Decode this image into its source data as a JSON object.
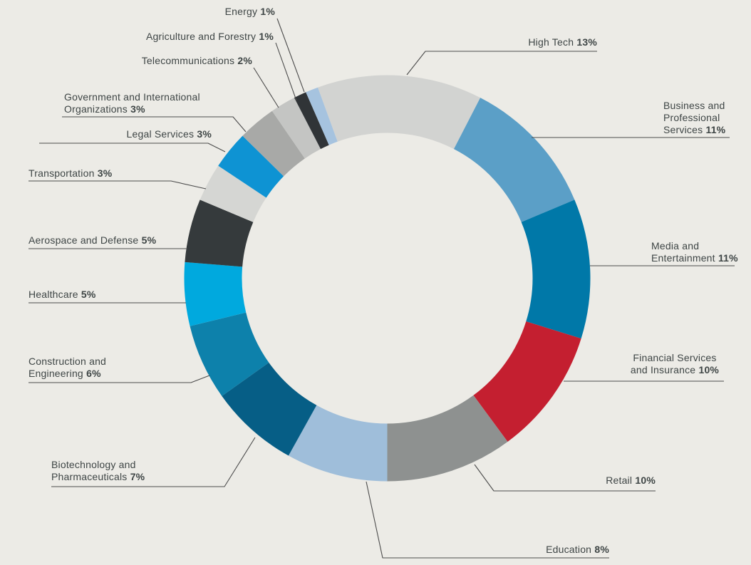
{
  "background_color": "#ecebe6",
  "text_color": "#3e4545",
  "leader_line_color": "#4c4c4c",
  "chart_data": {
    "type": "pie",
    "subtype": "donut",
    "title": "",
    "unit": "%",
    "direction": "clockwise",
    "start_angle_deg": -20,
    "total_pct": 99,
    "legend_position": "labels-around-chart-with-leader-lines",
    "segments": [
      {
        "id": "high-tech",
        "label": "High Tech",
        "pct": 13,
        "pct_label": "13%",
        "color": "#d2d3d1"
      },
      {
        "id": "business-and-professional-services",
        "label": "Business and\nProfessional\nServices",
        "pct": 11,
        "pct_label": "11%",
        "color": "#5b9fc7"
      },
      {
        "id": "media-and-entertainment",
        "label": "Media and\nEntertainment",
        "pct": 11,
        "pct_label": "11%",
        "color": "#0078a8"
      },
      {
        "id": "financial-services-and-insurance",
        "label": "Financial Services\nand Insurance",
        "pct": 10,
        "pct_label": "10%",
        "color": "#c41f30"
      },
      {
        "id": "retail",
        "label": "Retail",
        "pct": 10,
        "pct_label": "10%",
        "color": "#8e9190"
      },
      {
        "id": "education",
        "label": "Education",
        "pct": 8,
        "pct_label": "8%",
        "color": "#9fbeda"
      },
      {
        "id": "biotechnology-and-pharmaceuticals",
        "label": "Biotechnology and\nPharmaceuticals",
        "pct": 7,
        "pct_label": "7%",
        "color": "#065e86"
      },
      {
        "id": "construction-and-engineering",
        "label": "Construction and\nEngineering",
        "pct": 6,
        "pct_label": "6%",
        "color": "#0d81ab"
      },
      {
        "id": "healthcare",
        "label": "Healthcare",
        "pct": 5,
        "pct_label": "5%",
        "color": "#00a9de"
      },
      {
        "id": "aerospace-and-defense",
        "label": "Aerospace and Defense",
        "pct": 5,
        "pct_label": "5%",
        "color": "#353a3c"
      },
      {
        "id": "transportation",
        "label": "Transportation",
        "pct": 3,
        "pct_label": "3%",
        "color": "#d5d6d3"
      },
      {
        "id": "legal-services",
        "label": "Legal Services",
        "pct": 3,
        "pct_label": "3%",
        "color": "#0e93d3"
      },
      {
        "id": "government-and-international-organizations",
        "label": "Government and International\nOrganizations",
        "pct": 3,
        "pct_label": "3%",
        "color": "#a8a9a7"
      },
      {
        "id": "telecommunications",
        "label": "Telecommunications",
        "pct": 2,
        "pct_label": "2%",
        "color": "#c4c5c3"
      },
      {
        "id": "agriculture-and-forestry",
        "label": "Agriculture and Forestry",
        "pct": 1,
        "pct_label": "1%",
        "color": "#303437"
      },
      {
        "id": "energy",
        "label": "Energy",
        "pct": 1,
        "pct_label": "1%",
        "color": "#a6c3df"
      }
    ]
  }
}
